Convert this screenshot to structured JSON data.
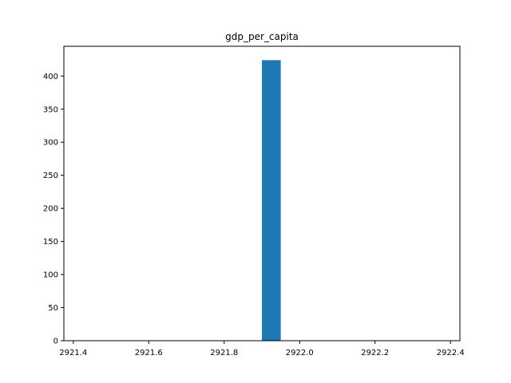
{
  "chart_data": {
    "type": "bar",
    "title": "gdp_per_capita",
    "xlabel": "",
    "ylabel": "",
    "xlim": [
      2921.375,
      2922.425
    ],
    "ylim": [
      0,
      445
    ],
    "x_ticks": [
      2921.4,
      2921.6,
      2921.8,
      2922.0,
      2922.2,
      2922.4
    ],
    "x_tick_labels": [
      "2921.4",
      "2921.6",
      "2921.8",
      "2922.0",
      "2922.2",
      "2922.4"
    ],
    "y_ticks": [
      0,
      50,
      100,
      150,
      200,
      250,
      300,
      350,
      400
    ],
    "y_tick_labels": [
      "0",
      "50",
      "100",
      "150",
      "200",
      "250",
      "300",
      "350",
      "400"
    ],
    "bars": [
      {
        "x0": 2921.9,
        "x1": 2921.95,
        "value": 424
      }
    ],
    "bar_color": "#1f77b4",
    "grid": false,
    "legend": "none"
  }
}
